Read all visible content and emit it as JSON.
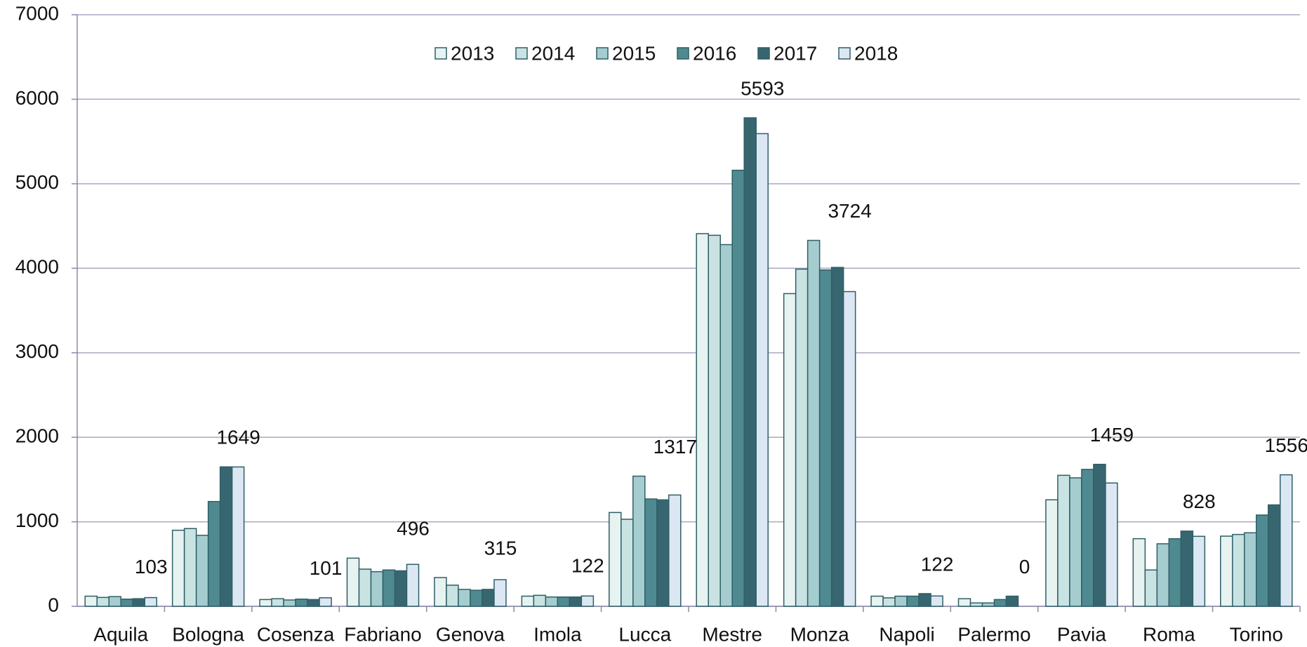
{
  "chart_data": {
    "type": "bar",
    "categories": [
      "Aquila",
      "Bologna",
      "Cosenza",
      "Fabriano",
      "Genova",
      "Imola",
      "Lucca",
      "Mestre",
      "Monza",
      "Napoli",
      "Palermo",
      "Pavia",
      "Roma",
      "Torino"
    ],
    "series": [
      {
        "name": "2013",
        "color": "#e6f3f1",
        "values": [
          120,
          900,
          80,
          570,
          340,
          120,
          1110,
          4410,
          3700,
          120,
          90,
          1260,
          800,
          830
        ]
      },
      {
        "name": "2014",
        "color": "#c8e3e2",
        "values": [
          105,
          920,
          90,
          440,
          250,
          130,
          1030,
          4390,
          3990,
          100,
          40,
          1550,
          430,
          850
        ]
      },
      {
        "name": "2015",
        "color": "#a5cdd0",
        "values": [
          115,
          840,
          75,
          410,
          200,
          110,
          1540,
          4280,
          4330,
          120,
          40,
          1520,
          740,
          870
        ]
      },
      {
        "name": "2016",
        "color": "#4f8a91",
        "values": [
          85,
          1240,
          85,
          430,
          190,
          110,
          1270,
          5160,
          3980,
          120,
          80,
          1620,
          800,
          1080
        ]
      },
      {
        "name": "2017",
        "color": "#386670",
        "values": [
          90,
          1650,
          80,
          420,
          200,
          110,
          1260,
          5780,
          4010,
          150,
          120,
          1680,
          890,
          1200
        ]
      },
      {
        "name": "2018",
        "color": "#dce7f4",
        "values": [
          103,
          1649,
          101,
          496,
          315,
          122,
          1317,
          5593,
          3724,
          122,
          0,
          1459,
          828,
          1556
        ]
      }
    ],
    "ylim": [
      0,
      7000
    ],
    "yticks": [
      0,
      1000,
      2000,
      3000,
      4000,
      5000,
      6000,
      7000
    ],
    "grid": true,
    "legend": "top"
  }
}
